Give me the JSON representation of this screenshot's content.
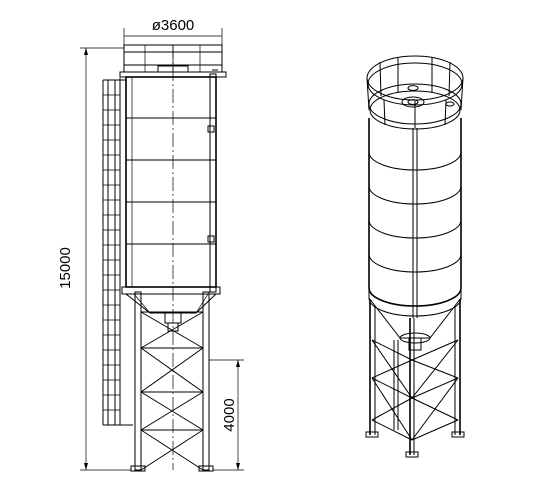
{
  "dimensions": {
    "diameter": "ø3600",
    "total_height": "15000",
    "support_height": "4000"
  }
}
